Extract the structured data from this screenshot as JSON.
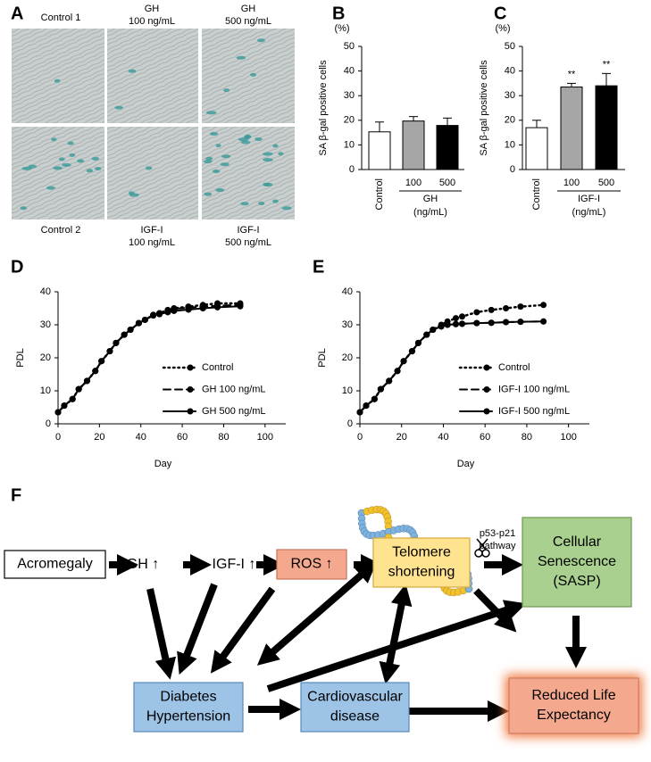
{
  "panel_labels": [
    "A",
    "B",
    "C",
    "D",
    "E",
    "F"
  ],
  "panel_a": {
    "top_labels": [
      [
        "Control 1"
      ],
      [
        "GH",
        "100 ng/mL"
      ],
      [
        "GH",
        "500 ng/mL"
      ]
    ],
    "bottom_labels": [
      [
        "Control 2"
      ],
      [
        "IGF-I",
        "100 ng/mL"
      ],
      [
        "IGF-I",
        "500 ng/mL"
      ]
    ]
  },
  "chart_data": [
    {
      "type": "bar",
      "unit_label": "(%)",
      "y_label": "SA β-gal positive cells",
      "categories": [
        "Control",
        "100",
        "500"
      ],
      "group_label": [
        "GH",
        "(ng/mL)"
      ],
      "values": [
        15.3,
        19.7,
        17.9
      ],
      "errors": [
        4,
        1.8,
        3
      ],
      "colors": [
        "#ffffff",
        "#a6a6a6",
        "#000000"
      ],
      "ylim": [
        0,
        50
      ],
      "yticks": [
        0,
        10,
        20,
        30,
        40,
        50
      ]
    },
    {
      "type": "bar",
      "unit_label": "(%)",
      "y_label": "SA β-gal positive cells",
      "categories": [
        "Control",
        "100",
        "500"
      ],
      "group_label": [
        "IGF-I",
        "(ng/mL)"
      ],
      "values": [
        17,
        33.5,
        34
      ],
      "errors": [
        3,
        1.5,
        5
      ],
      "significance": [
        null,
        "**",
        "**"
      ],
      "colors": [
        "#ffffff",
        "#a6a6a6",
        "#000000"
      ],
      "ylim": [
        0,
        50
      ],
      "yticks": [
        0,
        10,
        20,
        30,
        40,
        50
      ]
    },
    {
      "type": "line",
      "x_label": "Day",
      "y_label": "PDL",
      "x": [
        0,
        3,
        7,
        10,
        14,
        18,
        21,
        25,
        28,
        32,
        35,
        39,
        42,
        46,
        49,
        53,
        56,
        63,
        70,
        77,
        88
      ],
      "series": [
        {
          "name": "Control",
          "color": "#000000",
          "dash": "dotted",
          "values": [
            3.5,
            5.5,
            7.5,
            10.5,
            13,
            16,
            19,
            22,
            24.5,
            27,
            28.5,
            30.5,
            31.5,
            33,
            33.5,
            34.5,
            35,
            35.5,
            36,
            36.5,
            36.5
          ]
        },
        {
          "name": "GH 100 ng/mL",
          "color": "#000000",
          "dash": "dashed",
          "values": [
            3.5,
            5.5,
            7.5,
            10.5,
            13,
            16,
            19,
            22,
            24.5,
            27,
            28.5,
            30.5,
            31.5,
            33,
            33.5,
            34.3,
            34.8,
            35.2,
            35.5,
            35.8,
            36
          ]
        },
        {
          "name": "GH 500 ng/mL",
          "color": "#000000",
          "dash": "solid",
          "values": [
            3.5,
            5.5,
            7.5,
            10.5,
            13,
            16,
            19,
            22,
            24.5,
            27,
            28.5,
            30.5,
            31.5,
            32.8,
            33.2,
            33.8,
            34.2,
            34.6,
            35,
            35.3,
            35.6
          ]
        }
      ],
      "xlim": [
        0,
        110
      ],
      "xticks": [
        0,
        20,
        40,
        60,
        80,
        100
      ],
      "ylim": [
        0,
        40
      ],
      "yticks": [
        0,
        10,
        20,
        30,
        40
      ]
    },
    {
      "type": "line",
      "x_label": "Day",
      "y_label": "PDL",
      "x": [
        0,
        3,
        7,
        10,
        14,
        18,
        21,
        25,
        28,
        32,
        35,
        39,
        42,
        46,
        49,
        56,
        63,
        70,
        77,
        88
      ],
      "series": [
        {
          "name": "Control",
          "color": "#000000",
          "dash": "dotted",
          "values": [
            3.5,
            5.5,
            7.5,
            10.5,
            13,
            16,
            19,
            22,
            24.5,
            27,
            28.5,
            30,
            31,
            32,
            32.5,
            33.8,
            34.5,
            35,
            35.5,
            36
          ]
        },
        {
          "name": "IGF-I 100 ng/mL",
          "color": "#000000",
          "dash": "dashed",
          "values": [
            3.5,
            5.5,
            7.5,
            10.5,
            13,
            16,
            19,
            22,
            24.5,
            27,
            28.5,
            29.5,
            30,
            30.2,
            30.3,
            30.5,
            30.6,
            30.8,
            30.9,
            31
          ]
        },
        {
          "name": "IGF-I 500 ng/mL",
          "color": "#000000",
          "dash": "solid",
          "values": [
            3.5,
            5.5,
            7.5,
            10.5,
            13,
            16,
            19,
            22,
            24.5,
            27,
            28.5,
            29.5,
            30,
            30.2,
            30.3,
            30.5,
            30.6,
            30.8,
            30.9,
            31
          ]
        }
      ],
      "xlim": [
        0,
        110
      ],
      "xticks": [
        0,
        20,
        40,
        60,
        80,
        100
      ],
      "ylim": [
        0,
        40
      ],
      "yticks": [
        0,
        10,
        20,
        30,
        40
      ]
    }
  ],
  "diagram": {
    "nodes": [
      {
        "lines": [
          "Acromegaly"
        ]
      },
      {
        "lines": [
          "GH ↑"
        ]
      },
      {
        "lines": [
          "IGF-I ↑"
        ]
      },
      {
        "lines": [
          "ROS ↑"
        ]
      },
      {
        "lines": [
          "Telomere",
          "shortening"
        ]
      },
      {
        "lines": [
          "Cellular",
          "Senescence",
          "(SASP)"
        ]
      },
      {
        "lines": [
          "Diabetes",
          "Hypertension"
        ]
      },
      {
        "lines": [
          "Cardiovascular",
          "disease"
        ]
      },
      {
        "lines": [
          "Reduced Life",
          "Expectancy"
        ]
      }
    ],
    "edge_labels": [
      [
        "p53-p21",
        "pathway"
      ]
    ]
  }
}
